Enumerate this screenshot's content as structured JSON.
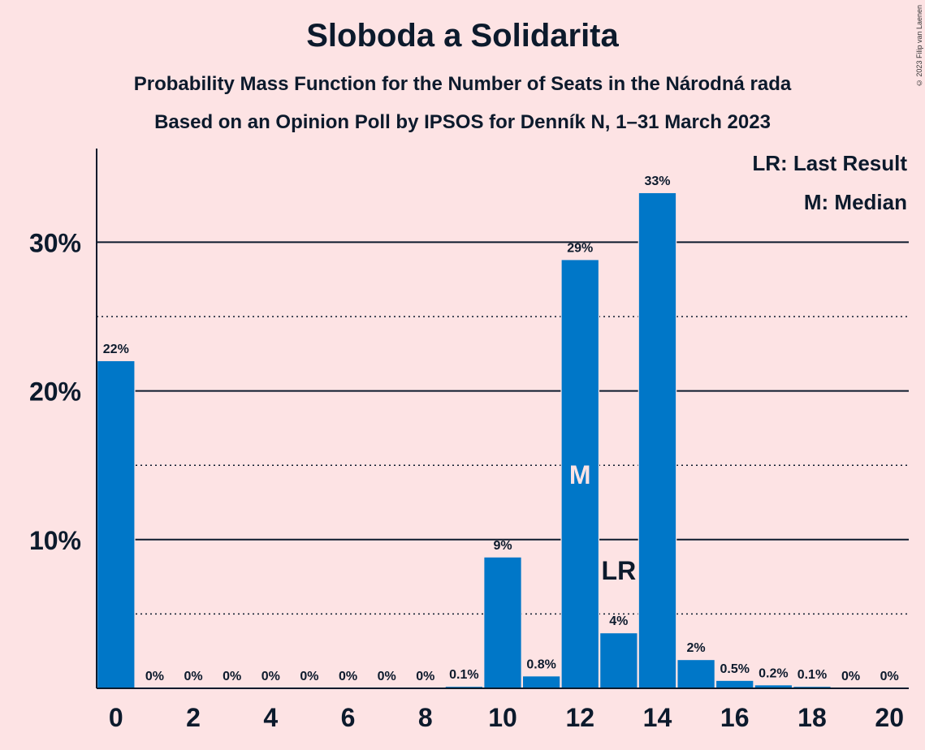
{
  "chart_data": {
    "type": "bar",
    "title": "Sloboda a Solidarita",
    "subtitle": "Probability Mass Function for the Number of Seats in the Národná rada",
    "subtitle2": "Based on an Opinion Poll by IPSOS for Denník N, 1–31 March 2023",
    "copyright": "© 2023 Filip van Laenen",
    "x": [
      0,
      1,
      2,
      3,
      4,
      5,
      6,
      7,
      8,
      9,
      10,
      11,
      12,
      13,
      14,
      15,
      16,
      17,
      18,
      19,
      20
    ],
    "values": [
      22,
      0,
      0,
      0,
      0,
      0,
      0,
      0,
      0,
      0.1,
      8.8,
      0.8,
      28.8,
      3.7,
      33.3,
      1.9,
      0.5,
      0.2,
      0.1,
      0,
      0
    ],
    "data_labels": [
      "22%",
      "0%",
      "0%",
      "0%",
      "0%",
      "0%",
      "0%",
      "0%",
      "0%",
      "0.1%",
      "9%",
      "0.8%",
      "29%",
      "4%",
      "33%",
      "2%",
      "0.5%",
      "0.2%",
      "0.1%",
      "0%",
      "0%"
    ],
    "x_tick_labels": [
      "0",
      "2",
      "4",
      "6",
      "8",
      "10",
      "12",
      "14",
      "16",
      "18",
      "20"
    ],
    "y_tick_labels": [
      "10%",
      "20%",
      "30%"
    ],
    "y_ticks": [
      10,
      20,
      30
    ],
    "y_minor_ticks": [
      5,
      15,
      25
    ],
    "ylim": [
      0,
      36.3
    ],
    "xlim": [
      -0.5,
      20.5
    ],
    "grid": true,
    "bar_color": "#0077c8",
    "background": "#fde3e4",
    "median": {
      "x": 12,
      "label": "M"
    },
    "last_result": {
      "x": 13,
      "label": "LR"
    },
    "legend": [
      "LR: Last Result",
      "M: Median"
    ],
    "legend_position": "top-right"
  }
}
